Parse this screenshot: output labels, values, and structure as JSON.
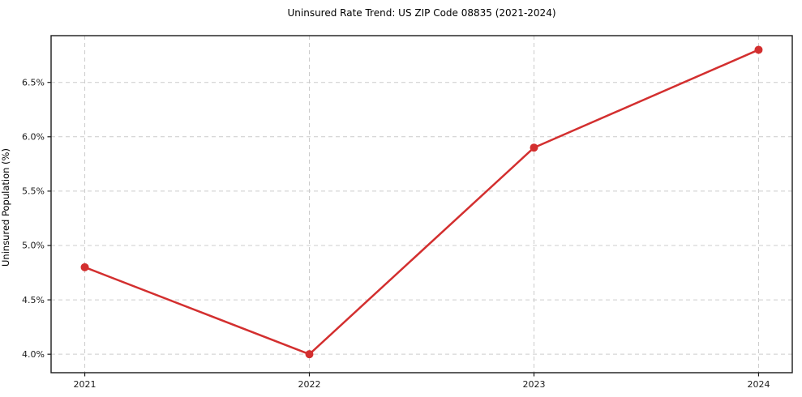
{
  "figure": {
    "title": "Uninsured Rate Trend: US ZIP Code 08835 (2021-2024)",
    "ylabel": "Uninsured Population (%)"
  },
  "chart_data": {
    "type": "line",
    "title": "Uninsured Rate Trend: US ZIP Code 08835 (2021-2024)",
    "xlabel": "",
    "ylabel": "Uninsured Population (%)",
    "x": [
      2021,
      2022,
      2023,
      2024
    ],
    "values": [
      4.8,
      4.0,
      5.9,
      6.8
    ],
    "xlim": [
      2020.85,
      2024.15
    ],
    "ylim": [
      3.83,
      6.93
    ],
    "xticks": {
      "values": [
        2021,
        2022,
        2023,
        2024
      ],
      "labels": [
        "2021",
        "2022",
        "2023",
        "2024"
      ]
    },
    "yticks": {
      "values": [
        4.0,
        4.5,
        5.0,
        5.5,
        6.0,
        6.5
      ],
      "labels": [
        "4.0%",
        "4.5%",
        "5.0%",
        "5.5%",
        "6.0%",
        "6.5%"
      ]
    },
    "grid": true,
    "legend": false,
    "colors": {
      "line": "#d32f2f",
      "marker": "#d32f2f",
      "grid": "#cccccc",
      "spine": "#1a1a1a",
      "tick_text": "#1a1a1a",
      "background": "#ffffff"
    },
    "style": {
      "line_width": 2.5,
      "marker_radius": 5,
      "grid_dash": "5 4"
    }
  }
}
